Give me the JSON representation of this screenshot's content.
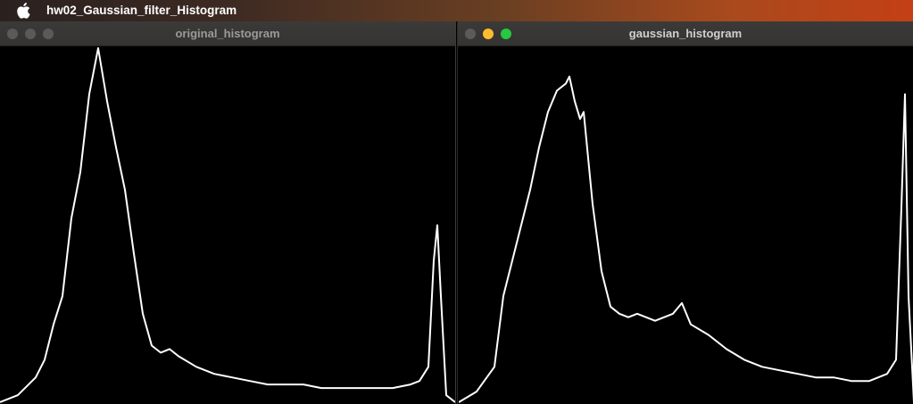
{
  "menubar": {
    "apple_icon": "apple-logo-icon",
    "app_name": "hw02_Gaussian_filter_Histogram"
  },
  "windows": [
    {
      "title": "original_histogram",
      "active": false
    },
    {
      "title": "gaussian_histogram",
      "active": true
    }
  ],
  "colors": {
    "plot_background": "#000000",
    "histogram_line": "#ffffff",
    "close_button": "#5b5b5b",
    "minimize_button": "#febc2e",
    "zoom_button": "#28c840"
  },
  "chart_data": [
    {
      "type": "line",
      "bins": 256,
      "ylim": [
        0,
        1
      ],
      "x_values": [
        0,
        10,
        20,
        25,
        30,
        35,
        40,
        45,
        50,
        55,
        60,
        65,
        70,
        75,
        80,
        85,
        90,
        95,
        100,
        110,
        120,
        130,
        140,
        150,
        160,
        170,
        180,
        190,
        200,
        210,
        220,
        230,
        235,
        240,
        243,
        245,
        247,
        250,
        255
      ],
      "y_values": [
        0.0,
        0.02,
        0.07,
        0.12,
        0.22,
        0.3,
        0.52,
        0.65,
        0.87,
        1.0,
        0.85,
        0.72,
        0.6,
        0.42,
        0.25,
        0.16,
        0.14,
        0.15,
        0.13,
        0.1,
        0.08,
        0.07,
        0.06,
        0.05,
        0.05,
        0.05,
        0.04,
        0.04,
        0.04,
        0.04,
        0.04,
        0.05,
        0.06,
        0.1,
        0.4,
        0.5,
        0.3,
        0.02,
        0.0
      ]
    },
    {
      "type": "line",
      "bins": 256,
      "ylim": [
        0,
        1
      ],
      "x_values": [
        0,
        10,
        20,
        25,
        30,
        35,
        40,
        45,
        50,
        55,
        60,
        62,
        65,
        68,
        70,
        75,
        80,
        85,
        90,
        95,
        100,
        110,
        120,
        125,
        130,
        140,
        150,
        160,
        170,
        180,
        190,
        200,
        210,
        220,
        230,
        240,
        245,
        248,
        250,
        252,
        255
      ],
      "y_values": [
        0.0,
        0.03,
        0.1,
        0.3,
        0.4,
        0.5,
        0.6,
        0.72,
        0.82,
        0.88,
        0.9,
        0.92,
        0.85,
        0.8,
        0.82,
        0.56,
        0.37,
        0.27,
        0.25,
        0.24,
        0.25,
        0.23,
        0.25,
        0.28,
        0.22,
        0.19,
        0.15,
        0.12,
        0.1,
        0.09,
        0.08,
        0.07,
        0.07,
        0.06,
        0.06,
        0.08,
        0.12,
        0.55,
        0.87,
        0.3,
        0.0
      ]
    }
  ]
}
